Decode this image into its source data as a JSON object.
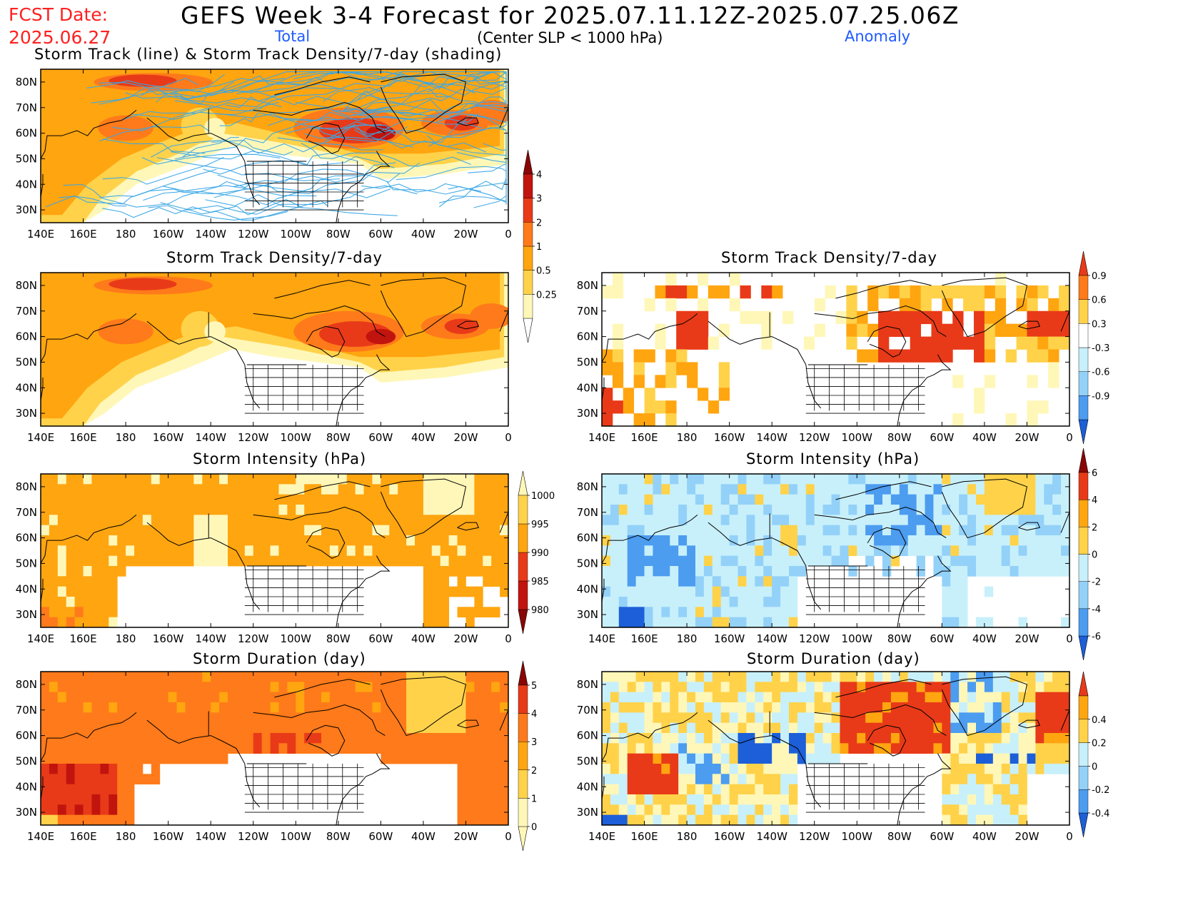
{
  "header": {
    "fcst_label": "FCST Date:",
    "fcst_date": "2025.06.27",
    "title": "GEFS Week 3-4 Forecast for 2025.07.11.12Z-2025.07.25.06Z",
    "subtitle": "(Center SLP < 1000 hPa)",
    "col_total": "Total",
    "col_anomaly": "Anomaly"
  },
  "panel_titles": {
    "p1": "Storm Track (line) & Storm Track Density/7-day (shading)",
    "p2": "Storm Track Density/7-day",
    "p3": "Storm Track Density/7-day",
    "p4": "Storm Intensity (hPa)",
    "p5": "Storm Intensity (hPa)",
    "p6": "Storm Duration (day)",
    "p7": "Storm Duration (day)"
  },
  "axes": {
    "lon_ticks": [
      "140E",
      "160E",
      "180",
      "160W",
      "140W",
      "120W",
      "100W",
      "80W",
      "60W",
      "40W",
      "20W",
      "0"
    ],
    "lat_ticks": [
      "80N",
      "70N",
      "60N",
      "50N",
      "40N",
      "30N"
    ]
  },
  "colors": {
    "warm": [
      "#fff7b8",
      "#ffd24a",
      "#ffa510",
      "#ff7a1a",
      "#e83a18",
      "#c2140e",
      "#8a0606"
    ],
    "cool": [
      "#c8f0fb",
      "#93d1f8",
      "#4c9cf0",
      "#1c5fd8"
    ],
    "track_line": "#3aa7e6"
  },
  "colorbars": {
    "density_total": [
      "0.25",
      "0.5",
      "1",
      "2",
      "3",
      "4"
    ],
    "density_anomaly": [
      "-0.9",
      "-0.6",
      "-0.3",
      "0.3",
      "0.6",
      "0.9"
    ],
    "intensity_total": [
      "980",
      "985",
      "990",
      "995",
      "1000"
    ],
    "intensity_anomaly": [
      "-6",
      "-4",
      "-2",
      "0",
      "2",
      "4",
      "6"
    ],
    "duration_total": [
      "0",
      "1",
      "2",
      "3",
      "4",
      "5"
    ],
    "duration_anomaly": [
      "-0.4",
      "-0.2",
      "0",
      "0.2",
      "0.4"
    ]
  },
  "chart_data": [
    {
      "type": "heatmap",
      "title": "Storm Track (line) & Storm Track Density/7-day (shading)",
      "xlabel": "",
      "ylabel": "",
      "xlim": [
        "140E",
        "0"
      ],
      "ylim": [
        "25N",
        "85N"
      ],
      "levels": [
        0.25,
        0.5,
        1,
        2,
        3,
        4
      ],
      "cells": [
        {
          "lon": -165,
          "lat": 80,
          "value": 4
        },
        {
          "lon": -150,
          "lat": 80,
          "value": 1
        },
        {
          "lon": -120,
          "lat": 75,
          "value": 1
        },
        {
          "lon": -175,
          "lat": 62,
          "value": 2
        },
        {
          "lon": -75,
          "lat": 62,
          "value": 4
        },
        {
          "lon": -60,
          "lat": 62,
          "value": 3
        },
        {
          "lon": -20,
          "lat": 65,
          "value": 3
        },
        {
          "lon": -10,
          "lat": 68,
          "value": 3
        },
        {
          "lon": 165,
          "lat": 40,
          "value": 1
        },
        {
          "lon": -140,
          "lat": 60,
          "value": 0.5
        }
      ]
    },
    {
      "type": "heatmap",
      "title": "Storm Track Density/7-day",
      "xlabel": "",
      "ylabel": "",
      "xlim": [
        "140E",
        "0"
      ],
      "ylim": [
        "25N",
        "85N"
      ],
      "levels": [
        0.25,
        0.5,
        1,
        2,
        3,
        4
      ],
      "cells": [
        {
          "lon": -165,
          "lat": 80,
          "value": 3
        },
        {
          "lon": -175,
          "lat": 62,
          "value": 2
        },
        {
          "lon": -75,
          "lat": 62,
          "value": 3
        },
        {
          "lon": -60,
          "lat": 60,
          "value": 3
        },
        {
          "lon": -25,
          "lat": 63,
          "value": 3
        },
        {
          "lon": -10,
          "lat": 68,
          "value": 2
        },
        {
          "lon": 165,
          "lat": 40,
          "value": 1
        },
        {
          "lon": -140,
          "lat": 60,
          "value": 0.5
        }
      ]
    },
    {
      "type": "heatmap",
      "title": "Storm Track Density/7-day",
      "xlabel": "",
      "ylabel": "",
      "xlim": [
        "140E",
        "0"
      ],
      "ylim": [
        "25N",
        "85N"
      ],
      "levels": [
        -0.9,
        -0.6,
        -0.3,
        0.3,
        0.6,
        0.9
      ],
      "cells": [
        {
          "lon": -170,
          "lat": 78,
          "value": 0.6
        },
        {
          "lon": -180,
          "lat": 62,
          "value": 0.9
        },
        {
          "lon": -80,
          "lat": 60,
          "value": 0.9
        },
        {
          "lon": -45,
          "lat": 58,
          "value": 0.9
        },
        {
          "lon": -10,
          "lat": 65,
          "value": 0.9
        },
        {
          "lon": 145,
          "lat": 32,
          "value": 0.9
        },
        {
          "lon": 165,
          "lat": 50,
          "value": 0.6
        }
      ]
    },
    {
      "type": "heatmap",
      "title": "Storm Intensity (hPa)",
      "xlabel": "",
      "ylabel": "",
      "xlim": [
        "140E",
        "0"
      ],
      "ylim": [
        "25N",
        "85N"
      ],
      "levels": [
        980,
        985,
        990,
        995,
        1000
      ],
      "cells": [
        {
          "lon": -150,
          "lat": 70,
          "value": 992
        },
        {
          "lon": -140,
          "lat": 62,
          "value": 997
        },
        {
          "lon": -40,
          "lat": 70,
          "value": 997
        },
        {
          "lon": 150,
          "lat": 30,
          "value": 987
        },
        {
          "lon": -70,
          "lat": 60,
          "value": 992
        }
      ]
    },
    {
      "type": "heatmap",
      "title": "Storm Intensity (hPa)",
      "xlabel": "",
      "ylabel": "",
      "xlim": [
        "140E",
        "0"
      ],
      "ylim": [
        "25N",
        "85N"
      ],
      "levels": [
        -6,
        -4,
        -2,
        0,
        2,
        4,
        6
      ],
      "cells": [
        {
          "lon": -170,
          "lat": 55,
          "value": -3
        },
        {
          "lon": -80,
          "lat": 65,
          "value": -3
        },
        {
          "lon": 155,
          "lat": 30,
          "value": -5
        },
        {
          "lon": -40,
          "lat": 70,
          "value": 1
        },
        {
          "lon": -150,
          "lat": 75,
          "value": -1
        }
      ]
    },
    {
      "type": "heatmap",
      "title": "Storm Duration (day)",
      "xlabel": "",
      "ylabel": "",
      "xlim": [
        "140E",
        "0"
      ],
      "ylim": [
        "25N",
        "85N"
      ],
      "levels": [
        0,
        1,
        2,
        3,
        4,
        5
      ],
      "cells": [
        {
          "lon": 160,
          "lat": 45,
          "value": 4.5
        },
        {
          "lon": -110,
          "lat": 55,
          "value": 4
        },
        {
          "lon": -40,
          "lat": 70,
          "value": 2
        },
        {
          "lon": -160,
          "lat": 75,
          "value": 3
        },
        {
          "lon": -60,
          "lat": 60,
          "value": 3
        }
      ]
    },
    {
      "type": "heatmap",
      "title": "Storm Duration (day)",
      "xlabel": "",
      "ylabel": "",
      "xlim": [
        "140E",
        "0"
      ],
      "ylim": [
        "25N",
        "85N"
      ],
      "levels": [
        -0.4,
        -0.2,
        0,
        0.2,
        0.4
      ],
      "cells": [
        {
          "lon": -90,
          "lat": 65,
          "value": 0.4
        },
        {
          "lon": 160,
          "lat": 40,
          "value": 0.4
        },
        {
          "lon": -150,
          "lat": 55,
          "value": -0.3
        },
        {
          "lon": -45,
          "lat": 55,
          "value": -0.3
        },
        {
          "lon": -50,
          "lat": 72,
          "value": -0.2
        },
        {
          "lon": -10,
          "lat": 65,
          "value": 0.4
        }
      ]
    }
  ]
}
